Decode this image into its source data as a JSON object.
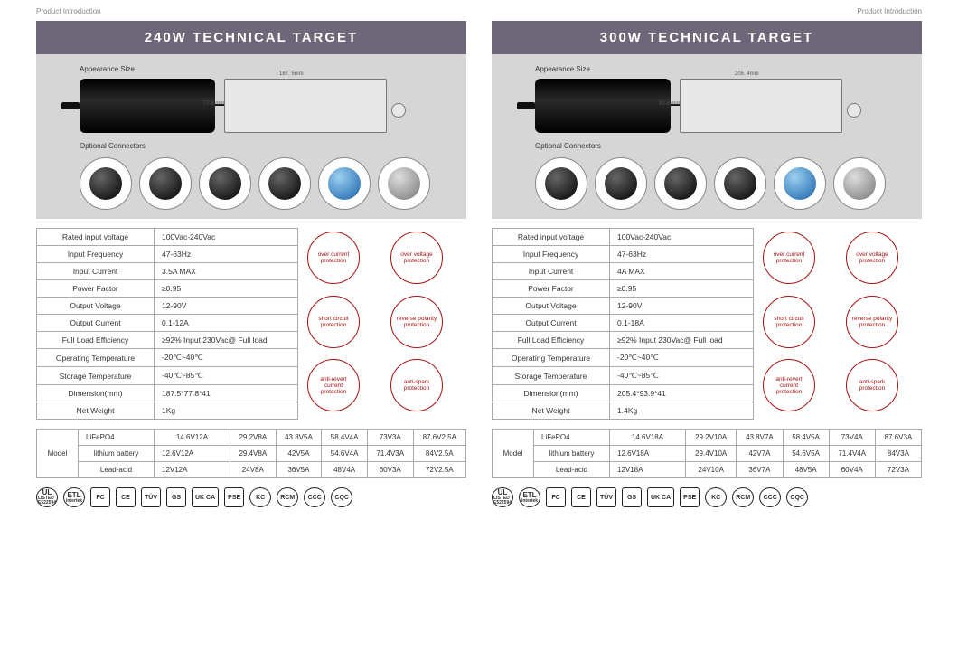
{
  "header_label": "Product Introduction",
  "sheets": [
    {
      "title": "240W   TECHNICAL TARGET",
      "appearance_label": "Appearance Size",
      "dim_w": "187. 5mm",
      "dim_h": "77.8 mm",
      "connectors_label": "Optional  Connectors",
      "specs": [
        [
          "Rated input voltage",
          "100Vac-240Vac"
        ],
        [
          "Input Frequency",
          "47-63Hz"
        ],
        [
          "Input Current",
          "3.5A MAX"
        ],
        [
          "Power Factor",
          "≥0.95"
        ],
        [
          "Output Voltage",
          "12-90V"
        ],
        [
          "Output Current",
          "0.1-12A"
        ],
        [
          "Full Load Efficiency",
          "≥92% Input 230Vac@ Full load"
        ],
        [
          "Operating Temperature",
          "-20℃~40℃"
        ],
        [
          "Storage Temperature",
          "-40℃~85℃"
        ],
        [
          "Dimension(mm)",
          "187.5*77.8*41"
        ],
        [
          "Net Weight",
          "1Kg"
        ]
      ],
      "protections": [
        "over current protection",
        "over voltage protection",
        "short circuit protection",
        "reverse polarity protection",
        "anti-revert current protection",
        "anti-spark protection"
      ],
      "model_label": "Model",
      "model_rows": [
        [
          "LiFePO4",
          "14.6V12A",
          "29.2V8A",
          "43.8V5A",
          "58.4V4A",
          "73V3A",
          "87.6V2.5A"
        ],
        [
          "lithium battery",
          "12.6V12A",
          "29.4V8A",
          "42V5A",
          "54.6V4A",
          "71.4V3A",
          "84V2.5A"
        ],
        [
          "Lead-acid",
          "12V12A",
          "24V8A",
          "36V5A",
          "48V4A",
          "60V3A",
          "72V2.5A"
        ]
      ]
    },
    {
      "title": "300W   TECHNICAL TARGET",
      "appearance_label": "Appearance Size",
      "dim_w": "205. 4mm",
      "dim_h": "93.9 mm",
      "connectors_label": "Optional  Connectors",
      "specs": [
        [
          "Rated input voltage",
          "100Vac-240Vac"
        ],
        [
          "Input Frequency",
          "47-63Hz"
        ],
        [
          "Input Current",
          "4A MAX"
        ],
        [
          "Power Factor",
          "≥0.95"
        ],
        [
          "Output Voltage",
          "12-90V"
        ],
        [
          "Output Current",
          "0.1-18A"
        ],
        [
          "Full Load Efficiency",
          "≥92% Input 230Vac@ Full load"
        ],
        [
          "Operating Temperature",
          "-20℃~40℃"
        ],
        [
          "Storage Temperature",
          "-40℃~85℃"
        ],
        [
          "Dimension(mm)",
          "205.4*93.9*41"
        ],
        [
          "Net Weight",
          "1.4Kg"
        ]
      ],
      "protections": [
        "over current protection",
        "over voltage protection",
        "short circuit protection",
        "reverse polarity protection",
        "anti-revert current protection",
        "anti-spark protection"
      ],
      "model_label": "Model",
      "model_rows": [
        [
          "LiFePO4",
          "14.6V18A",
          "29.2V10A",
          "43.8V7A",
          "58.4V5A",
          "73V4A",
          "87.6V3A"
        ],
        [
          "lithium battery",
          "12.6V18A",
          "29.4V10A",
          "42V7A",
          "54.6V5A",
          "71.4V4A",
          "84V3A"
        ],
        [
          "Lead-acid",
          "12V18A",
          "24V10A",
          "36V7A",
          "48V5A",
          "60V4A",
          "72V3A"
        ]
      ]
    }
  ],
  "certs": [
    "UL",
    "ETL",
    "FC",
    "CE",
    "TÜV",
    "GS",
    "UK CA",
    "PSE",
    "KC",
    "RCM",
    "CCC",
    "CQC"
  ],
  "cert_sub": {
    "ul": "LISTED E522594",
    "etl": "Intertek"
  },
  "colors": {
    "title_bg": "#6e6679",
    "appearance_bg": "#d6d6d6",
    "protection_ring": "#a11"
  }
}
